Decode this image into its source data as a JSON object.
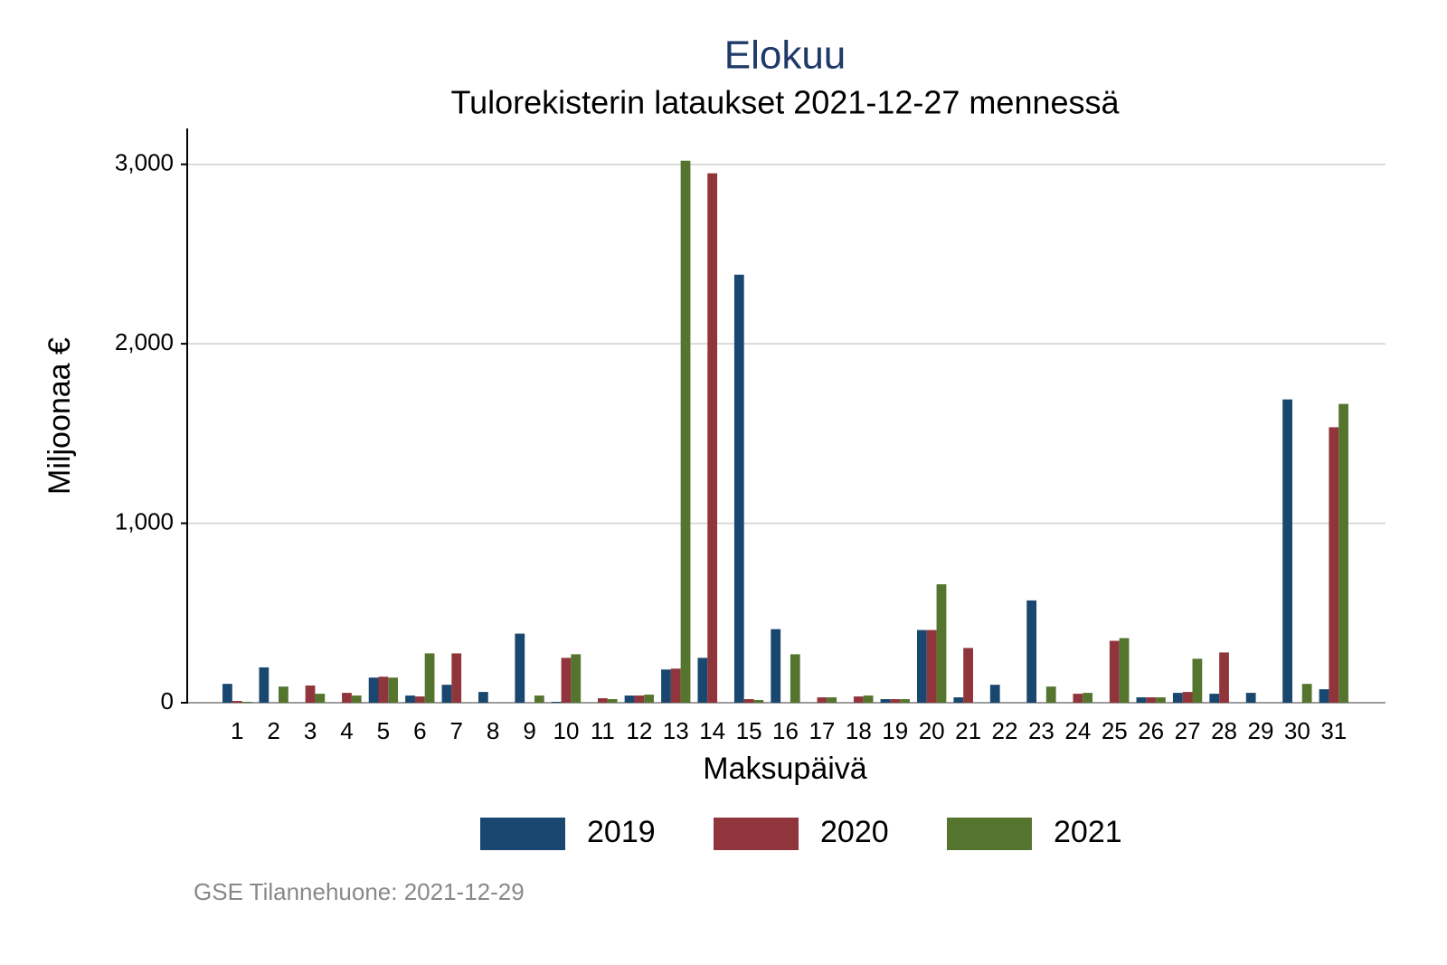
{
  "chart_data": {
    "type": "bar",
    "title": "Elokuu",
    "subtitle": "Tulorekisterin lataukset 2021-12-27 mennessä",
    "x_label": "Maksupäivä",
    "y_label": "Miljoonaa €",
    "source": "GSE Tilannehuone: 2021-12-29",
    "categories": [
      "1",
      "2",
      "3",
      "4",
      "5",
      "6",
      "7",
      "8",
      "9",
      "10",
      "11",
      "12",
      "13",
      "14",
      "15",
      "16",
      "17",
      "18",
      "19",
      "20",
      "21",
      "22",
      "23",
      "24",
      "25",
      "26",
      "27",
      "28",
      "29",
      "30",
      "31"
    ],
    "series": [
      {
        "name": "2019",
        "color": "#1a476f",
        "values": [
          105,
          197,
          0,
          0,
          140,
          40,
          100,
          60,
          385,
          5,
          0,
          40,
          185,
          250,
          2385,
          410,
          0,
          0,
          20,
          405,
          30,
          100,
          570,
          0,
          0,
          30,
          55,
          50,
          55,
          1690,
          75
        ]
      },
      {
        "name": "2020",
        "color": "#90353b",
        "values": [
          10,
          0,
          96,
          55,
          145,
          35,
          275,
          0,
          0,
          250,
          25,
          40,
          190,
          2950,
          20,
          0,
          30,
          35,
          20,
          405,
          305,
          0,
          0,
          50,
          345,
          30,
          60,
          280,
          0,
          0,
          1535
        ]
      },
      {
        "name": "2021",
        "color": "#55752f",
        "values": [
          5,
          90,
          50,
          40,
          140,
          275,
          0,
          0,
          40,
          270,
          20,
          45,
          3020,
          0,
          15,
          270,
          30,
          40,
          20,
          660,
          0,
          0,
          90,
          55,
          360,
          30,
          245,
          0,
          0,
          105,
          1665
        ]
      }
    ],
    "ylim": [
      0,
      3200
    ],
    "yticks": [
      0,
      {
        "value": 1000,
        "label": "1,000"
      },
      {
        "value": 2000,
        "label": "2,000"
      },
      {
        "value": 3000,
        "label": "3,000"
      }
    ],
    "grid": true,
    "legend": "bottom"
  }
}
